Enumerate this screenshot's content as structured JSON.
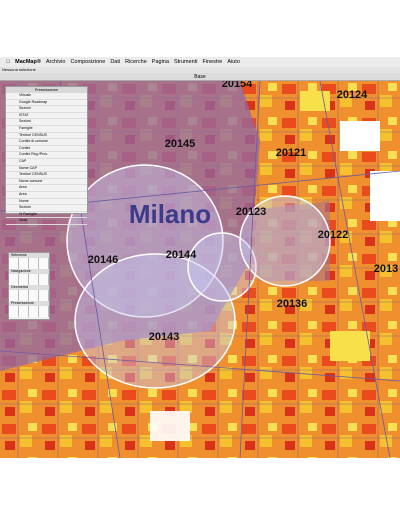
{
  "menu": {
    "items": [
      "MacMap®",
      "Archivio",
      "Composizione",
      "Dati",
      "Ricerche",
      "Pagina",
      "Strumenti",
      "Finestre",
      "Aiuto"
    ]
  },
  "status": "Nessuna selezione",
  "window": {
    "title": "Base"
  },
  "map": {
    "labels": [
      "20154",
      "20124",
      "20145",
      "20121",
      "Milano",
      "20123",
      "20122",
      "20146",
      "20144",
      "2013",
      "20136",
      "20143"
    ]
  },
  "layers_palette": {
    "title": "Presentazione",
    "layers": [
      "Virtuale",
      "Google Roadmap",
      "Sezioni",
      "ISTAT",
      "Sezioni",
      "Famiglie",
      "Territori CENSUS",
      "Confini di comune",
      "Confini",
      "Confini Reg./Prov.",
      "CAP",
      "Nome CAP",
      "Territori CENSUS",
      "Nome comune",
      "Area",
      "Area",
      "Nome",
      "Sezioni",
      "% Famiglie"
    ],
    "footer": "Vista"
  },
  "tools_palette": {
    "sections": [
      "Selezione",
      "Navigazione",
      "Geometria",
      "Presentazione"
    ]
  }
}
